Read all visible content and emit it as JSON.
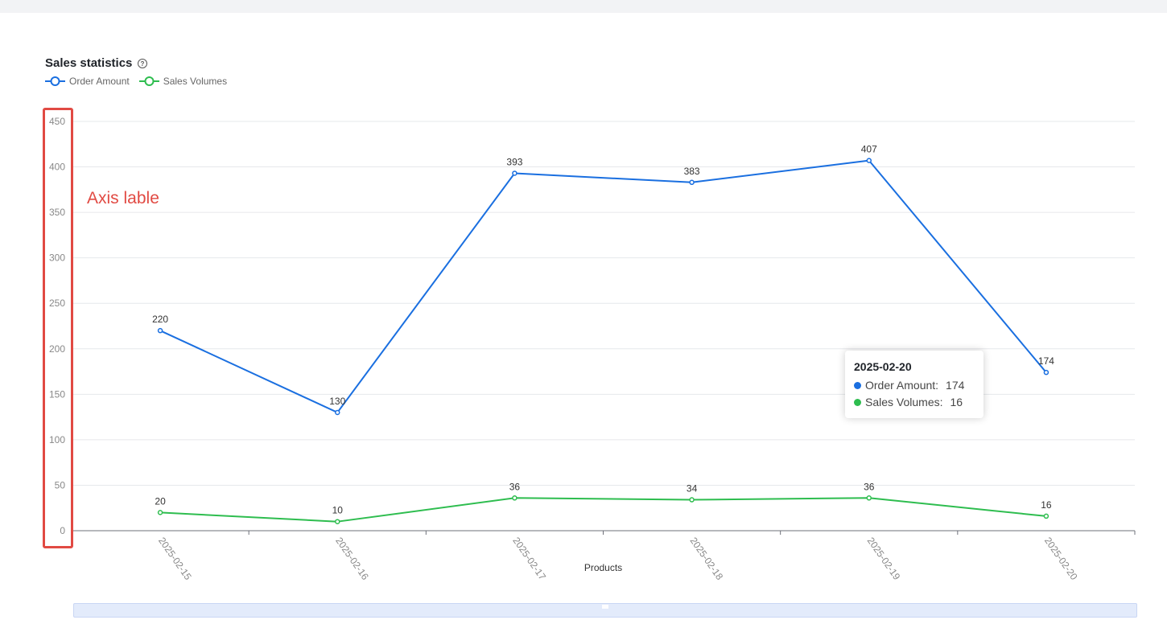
{
  "title": "Sales statistics",
  "legend": [
    {
      "name": "Order Amount",
      "color": "#1a6fe0"
    },
    {
      "name": "Sales Volumes",
      "color": "#2ebd4f"
    }
  ],
  "chart_data": {
    "type": "line",
    "x": [
      "2025-02-15",
      "2025-02-16",
      "2025-02-17",
      "2025-02-18",
      "2025-02-19",
      "2025-02-20"
    ],
    "series": [
      {
        "name": "Order Amount",
        "color": "#1a6fe0",
        "values": [
          220,
          130,
          393,
          383,
          407,
          174
        ]
      },
      {
        "name": "Sales Volumes",
        "color": "#2ebd4f",
        "values": [
          20,
          10,
          36,
          34,
          36,
          16
        ]
      }
    ],
    "xlabel": "Products",
    "ylabel": "",
    "ylim": [
      0,
      450
    ],
    "yticks": [
      0,
      50,
      100,
      150,
      200,
      250,
      300,
      350,
      400,
      450
    ],
    "grid": true,
    "legend_position": "top-left"
  },
  "tooltip": {
    "title": "2025-02-20",
    "rows": [
      {
        "label": "Order Amount:",
        "value": "174",
        "color": "#1a6fe0"
      },
      {
        "label": "Sales Volumes:",
        "value": "16",
        "color": "#2ebd4f"
      }
    ]
  },
  "annotation": "Axis lable"
}
